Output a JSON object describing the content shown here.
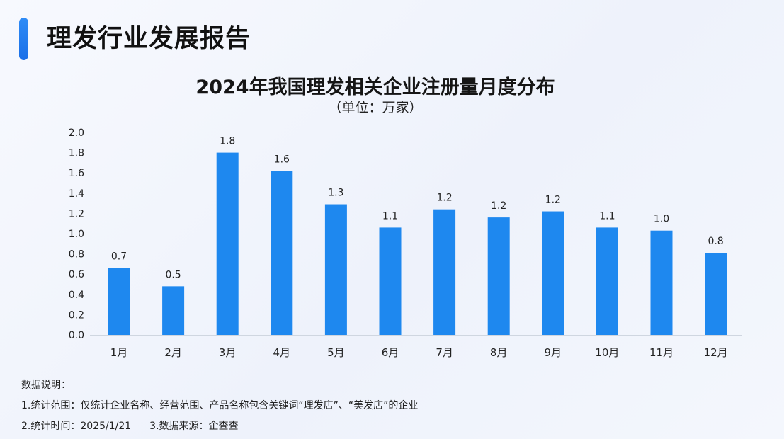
{
  "header": {
    "title": "理发行业发展报告"
  },
  "colors": {
    "accent": "#1f7ef0",
    "bar": "#1e88ef",
    "axis_line": "#cfd6e0",
    "text": "#222222"
  },
  "chart_data": {
    "type": "bar",
    "title": "2024年我国理发相关企业注册量月度分布",
    "subtitle": "（单位：万家）",
    "categories": [
      "1月",
      "2月",
      "3月",
      "4月",
      "5月",
      "6月",
      "7月",
      "8月",
      "9月",
      "10月",
      "11月",
      "12月"
    ],
    "values": [
      0.66,
      0.48,
      1.8,
      1.62,
      1.29,
      1.06,
      1.24,
      1.16,
      1.22,
      1.06,
      1.03,
      0.81
    ],
    "labels": [
      "0.7",
      "0.5",
      "1.8",
      "1.6",
      "1.3",
      "1.1",
      "1.2",
      "1.2",
      "1.2",
      "1.1",
      "1.0",
      "0.8"
    ],
    "yticks": [
      "0.0",
      "0.2",
      "0.4",
      "0.6",
      "0.8",
      "1.0",
      "1.2",
      "1.4",
      "1.6",
      "1.8",
      "2.0"
    ],
    "ylim": [
      0,
      2.0
    ],
    "grid": false,
    "legend": "none"
  },
  "notes": {
    "heading": "数据说明：",
    "line1": "1.统计范围：仅统计企业名称、经营范围、产品名称包含关键词“理发店”、“美发店”的企业",
    "line2a": "2.统计时间：2025/1/21",
    "line2b": "3.数据来源：企查查"
  }
}
